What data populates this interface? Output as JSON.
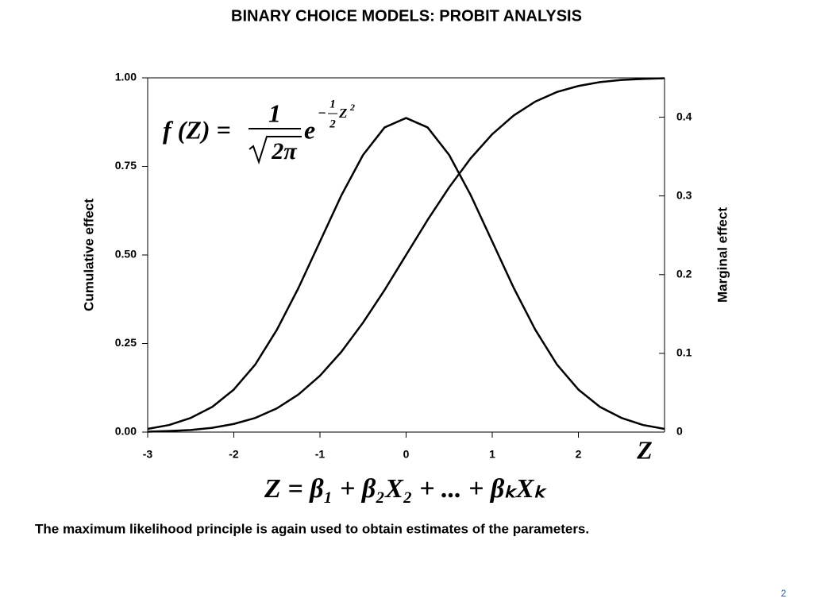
{
  "chart_data": {
    "type": "line",
    "title": "BINARY CHOICE MODELS: PROBIT ANALYSIS",
    "y_label": "Cumulative effect",
    "y2_label": "Marginal effect",
    "x_label": "Z",
    "x": [
      -3,
      -2.75,
      -2.5,
      -2.25,
      -2,
      -1.75,
      -1.5,
      -1.25,
      -1,
      -0.75,
      -0.5,
      -0.25,
      0,
      0.25,
      0.5,
      0.75,
      1,
      1.25,
      1.5,
      1.75,
      2,
      2.25,
      2.5,
      2.75,
      3
    ],
    "series": [
      {
        "color": "#000000",
        "values": [
          0.001,
          0.003,
          0.006,
          0.012,
          0.023,
          0.04,
          0.067,
          0.106,
          0.159,
          0.227,
          0.309,
          0.401,
          0.5,
          0.599,
          0.691,
          0.773,
          0.841,
          0.894,
          0.933,
          0.96,
          0.977,
          0.988,
          0.994,
          0.997,
          0.999
        ]
      },
      {
        "color": "#000000",
        "axis": "y2",
        "values": [
          0.004,
          0.009,
          0.018,
          0.032,
          0.054,
          0.086,
          0.13,
          0.183,
          0.242,
          0.301,
          0.352,
          0.387,
          0.399,
          0.387,
          0.352,
          0.301,
          0.242,
          0.183,
          0.13,
          0.086,
          0.054,
          0.032,
          0.018,
          0.009,
          0.004
        ]
      }
    ],
    "xlim": [
      -3,
      3
    ],
    "xticks": [
      -3,
      -2,
      -1,
      0,
      1,
      2
    ],
    "ylim": [
      0,
      1
    ],
    "yticks": [
      {
        "value": 0,
        "label": "0.00"
      },
      {
        "value": 0.25,
        "label": "0.25"
      },
      {
        "value": 0.5,
        "label": "0.50"
      },
      {
        "value": 0.75,
        "label": "0.75"
      },
      {
        "value": 1,
        "label": "1.00"
      }
    ],
    "y2lim": [
      0,
      0.45
    ],
    "y2ticks": [
      0,
      0.1,
      0.2,
      0.3,
      0.4
    ],
    "density_formula": {
      "lhs": "f (Z) =",
      "numerator": "1",
      "denominator": "2π",
      "base": "e",
      "exp_sign": "−",
      "exp_num": "1",
      "exp_den": "2",
      "exp_var": "Z",
      "exp_pow": "2"
    },
    "index_formula": "Z = β₁ + β₂X₂ + ... + βₖXₖ"
  },
  "footnote": "The maximum likelihood principle is again used to obtain estimates of the parameters.",
  "page_number": "2"
}
